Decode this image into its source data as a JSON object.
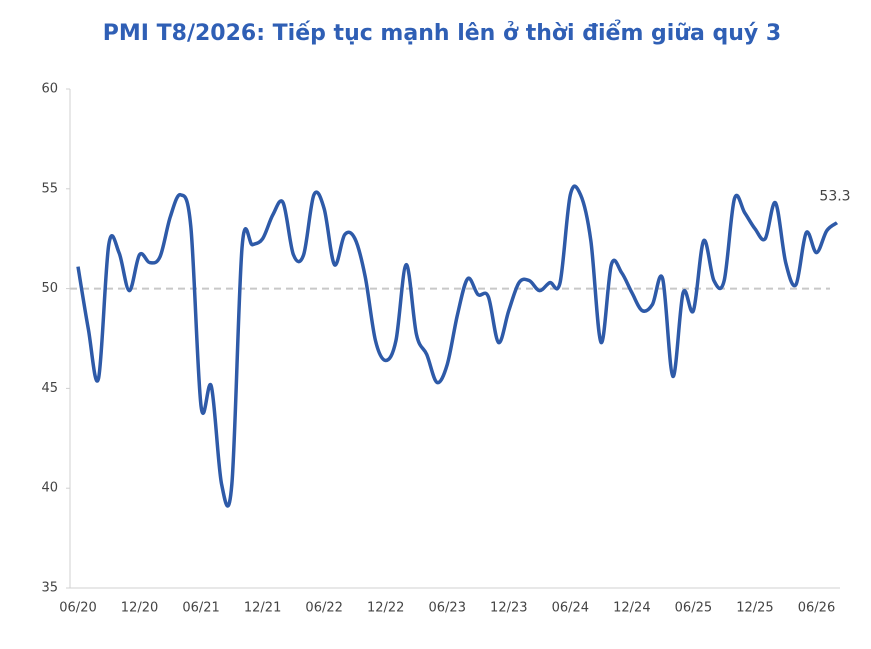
{
  "chart_data": {
    "type": "line",
    "title": "PMI T8/2026: Tiếp tục mạnh lên ở thời điểm giữa quý 3",
    "categories": [
      "06/20",
      null,
      null,
      null,
      null,
      null,
      "12/20",
      null,
      null,
      null,
      null,
      null,
      "06/21",
      null,
      null,
      null,
      null,
      null,
      "12/21",
      null,
      null,
      null,
      null,
      null,
      "06/22",
      null,
      null,
      null,
      null,
      null,
      "12/22",
      null,
      null,
      null,
      null,
      null,
      "06/23",
      null,
      null,
      null,
      null,
      null,
      "12/23",
      null,
      null,
      null,
      null,
      null,
      "06/24",
      null,
      null,
      null,
      null,
      null,
      "12/24",
      null,
      null,
      null,
      null,
      null,
      "06/25",
      null,
      null,
      null,
      null,
      null,
      "12/25",
      null,
      null,
      null,
      null,
      null,
      "06/26",
      null,
      null
    ],
    "series": [
      {
        "color": "#2e5aa8",
        "values": [
          51.1,
          48,
          45.5,
          52.2,
          51.8,
          49.9,
          51.7,
          51.3,
          51.6,
          53.6,
          54.7,
          53.1,
          44.1,
          45.1,
          40.2,
          40.2,
          52.1,
          52.2,
          52.5,
          53.7,
          54.3,
          51.7,
          51.7,
          54.7,
          54.0,
          51.2,
          52.7,
          52.5,
          50.6,
          47.4,
          46.4,
          47.4,
          51.2,
          47.7,
          46.7,
          45.3,
          46.2,
          48.7,
          50.5,
          49.7,
          49.6,
          47.3,
          48.9,
          50.3,
          50.4,
          49.9,
          50.3,
          50.3,
          54.7,
          54.7,
          52.4,
          47.3,
          51.2,
          50.8,
          49.8,
          48.9,
          49.2,
          50.5,
          45.6,
          49.8,
          48.9,
          52.4,
          50.4,
          50.4,
          54.5,
          53.8,
          53.0,
          52.5,
          54.3,
          51.3,
          50.2,
          52.8,
          51.8,
          52.9,
          53.3
        ]
      }
    ],
    "ylim": [
      35,
      60
    ],
    "yticks": [
      35,
      40,
      45,
      50,
      55,
      60
    ],
    "reference_line": 50,
    "grid": false
  }
}
